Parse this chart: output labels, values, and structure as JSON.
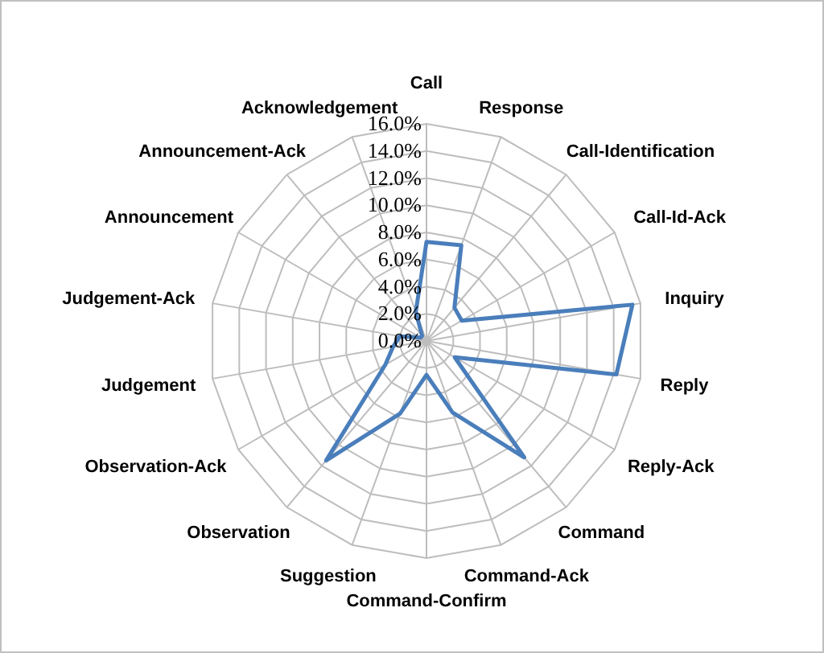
{
  "chart_data": {
    "type": "radar",
    "categories": [
      "Call",
      "Response",
      "Call-Identification",
      "Call-Id-Ack",
      "Inquiry",
      "Reply",
      "Reply-Ack",
      "Command",
      "Command-Ack",
      "Command-Confirm",
      "Suggestion",
      "Observation",
      "Observation-Ack",
      "Judgement",
      "Judgement-Ack",
      "Announcement",
      "Announcement-Ack",
      "Acknowledgement"
    ],
    "series": [
      {
        "color": "#4a7ebb",
        "values": [
          7.3,
          7.5,
          3.2,
          3.0,
          15.4,
          14.2,
          2.4,
          11.2,
          5.6,
          2.5,
          5.7,
          11.5,
          3.5,
          2.5,
          2.0,
          0.5,
          0.5,
          2.3
        ]
      }
    ],
    "ylim": [
      0,
      16
    ],
    "yticks": [
      {
        "value": 0,
        "label": "0.0%"
      },
      {
        "value": 2,
        "label": "2.0%"
      },
      {
        "value": 4,
        "label": "4.0%"
      },
      {
        "value": 6,
        "label": "6.0%"
      },
      {
        "value": 8,
        "label": "8.0%"
      },
      {
        "value": 10,
        "label": "10.0%"
      },
      {
        "value": 12,
        "label": "12.0%"
      },
      {
        "value": 14,
        "label": "14.0%"
      },
      {
        "value": 16,
        "label": "16.0%"
      }
    ],
    "grid": true,
    "legend": false,
    "marker": "none",
    "line_style": "solid"
  }
}
